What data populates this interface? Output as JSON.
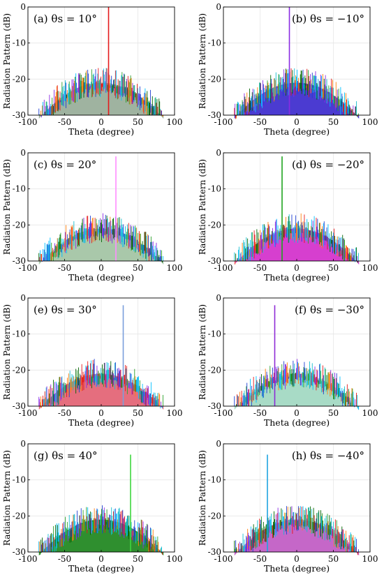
{
  "chart_data": [
    {
      "type": "bar",
      "panel_label": "(a)",
      "title_tex": "θs = 10°",
      "steer_deg": 10,
      "fill_color": "#9fb3a0",
      "spike_color": "#e41a1c",
      "xlabel": "Theta (degree)",
      "ylabel": "Radiation Pattern (dB)",
      "xlim": [
        -100,
        100
      ],
      "ylim": [
        -30,
        0
      ],
      "xticks": [
        -100,
        -50,
        0,
        50,
        100
      ],
      "yticks": [
        -30,
        -20,
        -10,
        0
      ],
      "ytick_labels": [
        "-30",
        "-20",
        "-10",
        "0"
      ],
      "grid": true,
      "spike_peak_db": 0,
      "envelope_peak_db": -20,
      "envelope_edge_db": -30,
      "beam_extent_deg": [
        -85,
        85
      ]
    },
    {
      "type": "bar",
      "panel_label": "(b)",
      "title_tex": "θs = −10°",
      "steer_deg": -10,
      "fill_color": "#4b3bd1",
      "spike_color": "#8a2be2",
      "xlabel": "Theta (degree)",
      "ylabel": "Radiation Pattern (dB)",
      "xlim": [
        -100,
        100
      ],
      "ylim": [
        -30,
        0
      ],
      "xticks": [
        -100,
        -50,
        0,
        50,
        100
      ],
      "yticks": [
        -30,
        -20,
        -10,
        0
      ],
      "ytick_labels": [
        "-30",
        "-20",
        "-10",
        "0"
      ],
      "grid": true,
      "spike_peak_db": 0,
      "envelope_peak_db": -20,
      "envelope_edge_db": -30,
      "beam_extent_deg": [
        -85,
        85
      ]
    },
    {
      "type": "bar",
      "panel_label": "(c)",
      "title_tex": "θs = 20°",
      "steer_deg": 20,
      "fill_color": "#a9c8aa",
      "spike_color": "#ff8cff",
      "xlabel": "Theta (degree)",
      "ylabel": "Radiation Pattern (dB)",
      "xlim": [
        -100,
        100
      ],
      "ylim": [
        -30,
        0
      ],
      "xticks": [
        -100,
        -50,
        0,
        50,
        100
      ],
      "yticks": [
        -30,
        -20,
        -10,
        0
      ],
      "ytick_labels": [
        "-30",
        "-20",
        "-10",
        "0"
      ],
      "grid": true,
      "spike_peak_db": -1,
      "envelope_peak_db": -20,
      "envelope_edge_db": -30,
      "beam_extent_deg": [
        -85,
        85
      ]
    },
    {
      "type": "bar",
      "panel_label": "(d)",
      "title_tex": "θs = −20°",
      "steer_deg": -20,
      "fill_color": "#d63fcf",
      "spike_color": "#1fa31f",
      "xlabel": "Theta (degree)",
      "ylabel": "Radiation Pattern (dB)",
      "xlim": [
        -100,
        100
      ],
      "ylim": [
        -30,
        0
      ],
      "xticks": [
        -100,
        -50,
        0,
        50,
        100
      ],
      "yticks": [
        -30,
        -20,
        -10,
        0
      ],
      "ytick_labels": [
        "-30",
        "-20",
        "-10",
        "0"
      ],
      "grid": true,
      "spike_peak_db": -1,
      "envelope_peak_db": -20,
      "envelope_edge_db": -30,
      "beam_extent_deg": [
        -85,
        85
      ]
    },
    {
      "type": "bar",
      "panel_label": "(e)",
      "title_tex": "θs = 30°",
      "steer_deg": 30,
      "fill_color": "#e56e7e",
      "spike_color": "#7a9fdc",
      "xlabel": "Theta (degree)",
      "ylabel": "Radiation Pattern (dB)",
      "xlim": [
        -100,
        100
      ],
      "ylim": [
        -30,
        0
      ],
      "xticks": [
        -100,
        -50,
        0,
        50,
        100
      ],
      "yticks": [
        -30,
        -20,
        -10,
        0
      ],
      "ytick_labels": [
        "-30",
        "-20",
        "-10",
        "0"
      ],
      "grid": true,
      "spike_peak_db": -2,
      "envelope_peak_db": -20,
      "envelope_edge_db": -30,
      "beam_extent_deg": [
        -85,
        85
      ]
    },
    {
      "type": "bar",
      "panel_label": "(f)",
      "title_tex": "θs = −30°",
      "steer_deg": -30,
      "fill_color": "#a8dbc6",
      "spike_color": "#8e2bd6",
      "xlabel": "Theta (degree)",
      "ylabel": "Radiation Pattern (dB)",
      "xlim": [
        -100,
        100
      ],
      "ylim": [
        -30,
        0
      ],
      "xticks": [
        -100,
        -50,
        0,
        50,
        100
      ],
      "yticks": [
        -30,
        -20,
        -10,
        0
      ],
      "ytick_labels": [
        "-30",
        "-20",
        "-10",
        "0"
      ],
      "grid": true,
      "spike_peak_db": -2,
      "envelope_peak_db": -20,
      "envelope_edge_db": -30,
      "beam_extent_deg": [
        -85,
        85
      ]
    },
    {
      "type": "bar",
      "panel_label": "(g)",
      "title_tex": "θs = 40°",
      "steer_deg": 40,
      "fill_color": "#2f8f2f",
      "spike_color": "#3dd63d",
      "xlabel": "Theta (degree)",
      "ylabel": "Radiation Pattern (dB)",
      "xlim": [
        -100,
        100
      ],
      "ylim": [
        -30,
        0
      ],
      "xticks": [
        -100,
        -50,
        0,
        50,
        100
      ],
      "yticks": [
        -30,
        -20,
        -10,
        0
      ],
      "ytick_labels": [
        "-30",
        "-20",
        "-10",
        "0"
      ],
      "grid": true,
      "spike_peak_db": -3,
      "envelope_peak_db": -20,
      "envelope_edge_db": -30,
      "beam_extent_deg": [
        -85,
        85
      ]
    },
    {
      "type": "bar",
      "panel_label": "(h)",
      "title_tex": "θs = −40°",
      "steer_deg": -40,
      "fill_color": "#c567c8",
      "spike_color": "#1ea4e0",
      "xlabel": "Theta (degree)",
      "ylabel": "Radiation Pattern (dB)",
      "xlim": [
        -100,
        100
      ],
      "ylim": [
        -30,
        0
      ],
      "xticks": [
        -100,
        -50,
        0,
        50,
        100
      ],
      "yticks": [
        -30,
        -20,
        -10,
        0
      ],
      "ytick_labels": [
        "-30",
        "-20",
        "-10",
        "0"
      ],
      "grid": true,
      "spike_peak_db": -3,
      "envelope_peak_db": -20,
      "envelope_edge_db": -30,
      "beam_extent_deg": [
        -85,
        85
      ]
    }
  ],
  "noise_colors": [
    "#e41a1c",
    "#1f3fd1",
    "#2ca02c",
    "#8a2be2",
    "#17becf",
    "#ff7f0e",
    "#006400",
    "#00bfff"
  ]
}
